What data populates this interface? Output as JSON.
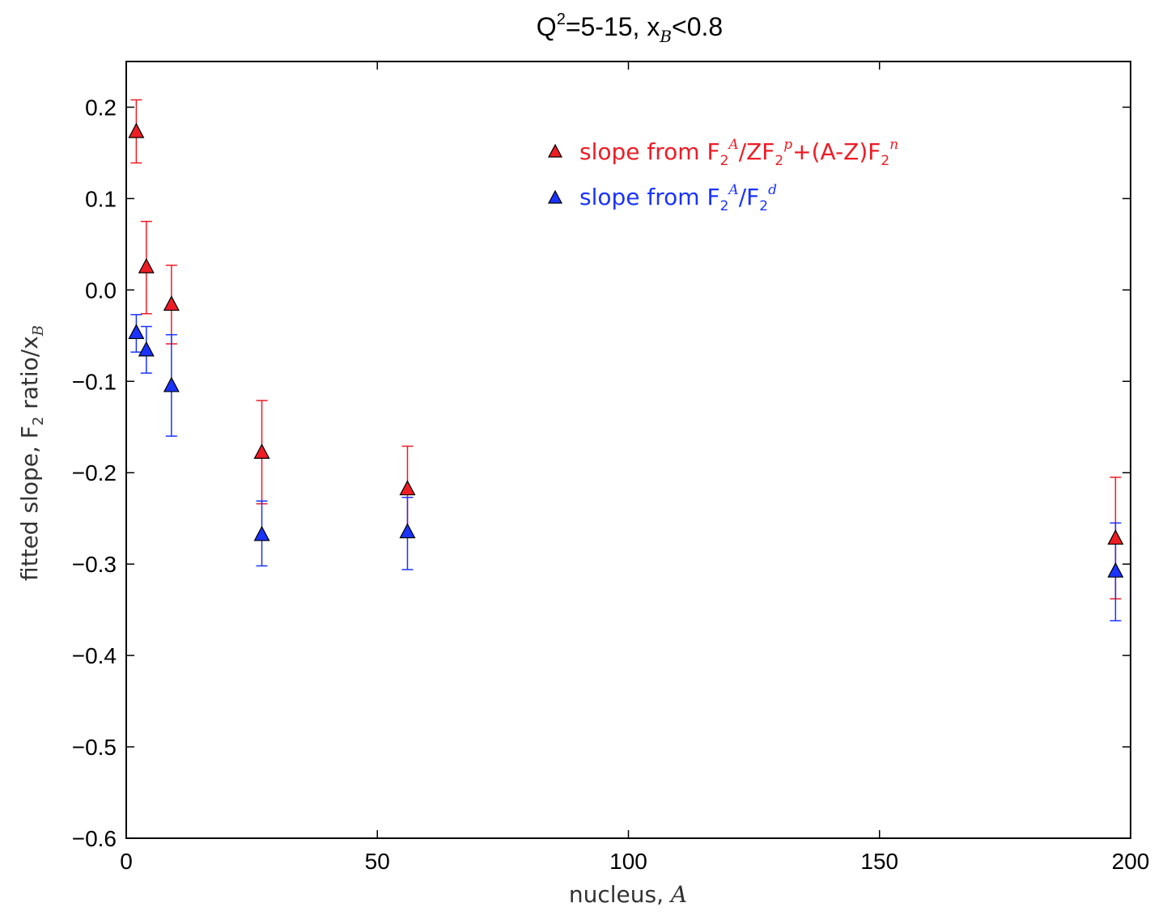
{
  "chart_data": {
    "type": "scatter",
    "title": "Q²=5-15, x_B<0.8",
    "title_parts": {
      "q": "Q",
      "q_sup": "2",
      "q_rest": "=5-15, x",
      "x_sub": "B",
      "x_rest": "<0.8"
    },
    "xlabel": "nucleus, A",
    "xlabel_parts": {
      "text": "nucleus, ",
      "ital": "A"
    },
    "ylabel": "fitted slope, F₂ ratio/x_B",
    "ylabel_parts": {
      "pre": "fitted slope, F",
      "sub": "2",
      "mid": " ratio/x",
      "sub2": "B"
    },
    "xlim": [
      0,
      200
    ],
    "ylim": [
      -0.6,
      0.25
    ],
    "x_ticks": [
      0,
      50,
      100,
      150,
      200
    ],
    "x_tick_labels": [
      "0",
      "50",
      "100",
      "150",
      "200"
    ],
    "y_ticks": [
      0.2,
      0.1,
      0.0,
      -0.1,
      -0.2,
      -0.3,
      -0.4,
      -0.5,
      -0.6
    ],
    "y_tick_labels": [
      "0.2",
      "0.1",
      "0.0",
      "−0.1",
      "−0.2",
      "−0.3",
      "−0.4",
      "−0.5",
      "−0.6"
    ],
    "grid": false,
    "legend_position": "top-center",
    "series": [
      {
        "name": "slope from F2^A/ZF2^p+(A-Z)F2^n",
        "legend_parts": {
          "a": "slope from F",
          "a_sub": "2",
          "a_sup": "A",
          "b": "/ZF",
          "b_sub": "2",
          "b_sup": "p",
          "c": "+(A-Z)F",
          "c_sub": "2",
          "c_sup": "n"
        },
        "color": "#ee1c25",
        "marker": "triangle",
        "points": [
          {
            "x": 2,
            "y": 0.173,
            "err_low": 0.139,
            "err_high": 0.208
          },
          {
            "x": 4,
            "y": 0.025,
            "err_low": -0.026,
            "err_high": 0.075
          },
          {
            "x": 9,
            "y": -0.016,
            "err_low": -0.059,
            "err_high": 0.027
          },
          {
            "x": 27,
            "y": -0.178,
            "err_low": -0.234,
            "err_high": -0.121
          },
          {
            "x": 56,
            "y": -0.218,
            "err_low": -0.267,
            "err_high": -0.171
          },
          {
            "x": 197,
            "y": -0.272,
            "err_low": -0.338,
            "err_high": -0.205
          }
        ]
      },
      {
        "name": "slope from F2^A/F2^d",
        "legend_parts": {
          "a": "slope from F",
          "a_sub": "2",
          "a_sup": "A",
          "b": "/F",
          "b_sub": "2",
          "b_sup": "d"
        },
        "color": "#1a33ff",
        "marker": "triangle",
        "points": [
          {
            "x": 2,
            "y": -0.047,
            "err_low": -0.068,
            "err_high": -0.027
          },
          {
            "x": 4,
            "y": -0.066,
            "err_low": -0.091,
            "err_high": -0.04
          },
          {
            "x": 9,
            "y": -0.105,
            "err_low": -0.16,
            "err_high": -0.049
          },
          {
            "x": 27,
            "y": -0.268,
            "err_low": -0.302,
            "err_high": -0.231
          },
          {
            "x": 56,
            "y": -0.265,
            "err_low": -0.306,
            "err_high": -0.227
          },
          {
            "x": 197,
            "y": -0.308,
            "err_low": -0.362,
            "err_high": -0.255
          }
        ]
      }
    ]
  }
}
